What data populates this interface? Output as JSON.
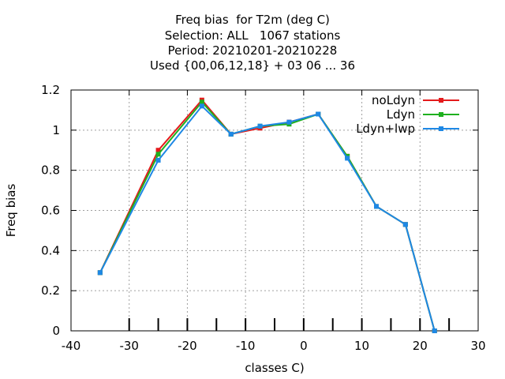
{
  "chart_data": {
    "type": "line",
    "title_lines": [
      "Freq bias  for T2m (deg C)",
      "Selection: ALL   1067 stations",
      "Period: 20210201-20210228",
      "Used {00,06,12,18} + 03 06 ... 36"
    ],
    "xlabel": "classes C)",
    "ylabel": "Freq bias",
    "xlim": [
      -40,
      30
    ],
    "ylim": [
      0,
      1.2
    ],
    "x_ticks": [
      -40,
      -30,
      -20,
      -10,
      0,
      10,
      20,
      30
    ],
    "y_ticks": [
      0,
      0.2,
      0.4,
      0.6,
      0.8,
      1,
      1.2
    ],
    "x_tick_labels": [
      "-40",
      "-30",
      "-20",
      "-10",
      "0",
      "10",
      "20",
      "30"
    ],
    "y_tick_labels": [
      "0",
      "0.2",
      "0.4",
      "0.6",
      "0.8",
      "1",
      "1.2"
    ],
    "class_boundaries": [
      -30,
      -25,
      -20,
      -15,
      -10,
      -5,
      0,
      5,
      10,
      15,
      20,
      25
    ],
    "grid": true,
    "legend_position": "top-right",
    "x": [
      -35,
      -25,
      -17.5,
      -12.5,
      -7.5,
      -2.5,
      2.5,
      7.5,
      12.5,
      17.5,
      22.5
    ],
    "series": [
      {
        "name": "noLdyn",
        "color": "#e41a1c",
        "values": [
          0.29,
          0.9,
          1.15,
          0.98,
          1.01,
          1.04,
          1.08,
          0.87,
          0.62,
          0.53,
          0.0
        ]
      },
      {
        "name": "Ldyn",
        "color": "#1fb01f",
        "values": [
          0.29,
          0.88,
          1.14,
          0.98,
          1.02,
          1.03,
          1.08,
          0.87,
          0.62,
          0.53,
          0.0
        ]
      },
      {
        "name": "Ldyn+lwp",
        "color": "#1e88e5",
        "values": [
          0.29,
          0.85,
          1.12,
          0.98,
          1.02,
          1.04,
          1.08,
          0.86,
          0.62,
          0.53,
          0.0
        ]
      }
    ]
  }
}
